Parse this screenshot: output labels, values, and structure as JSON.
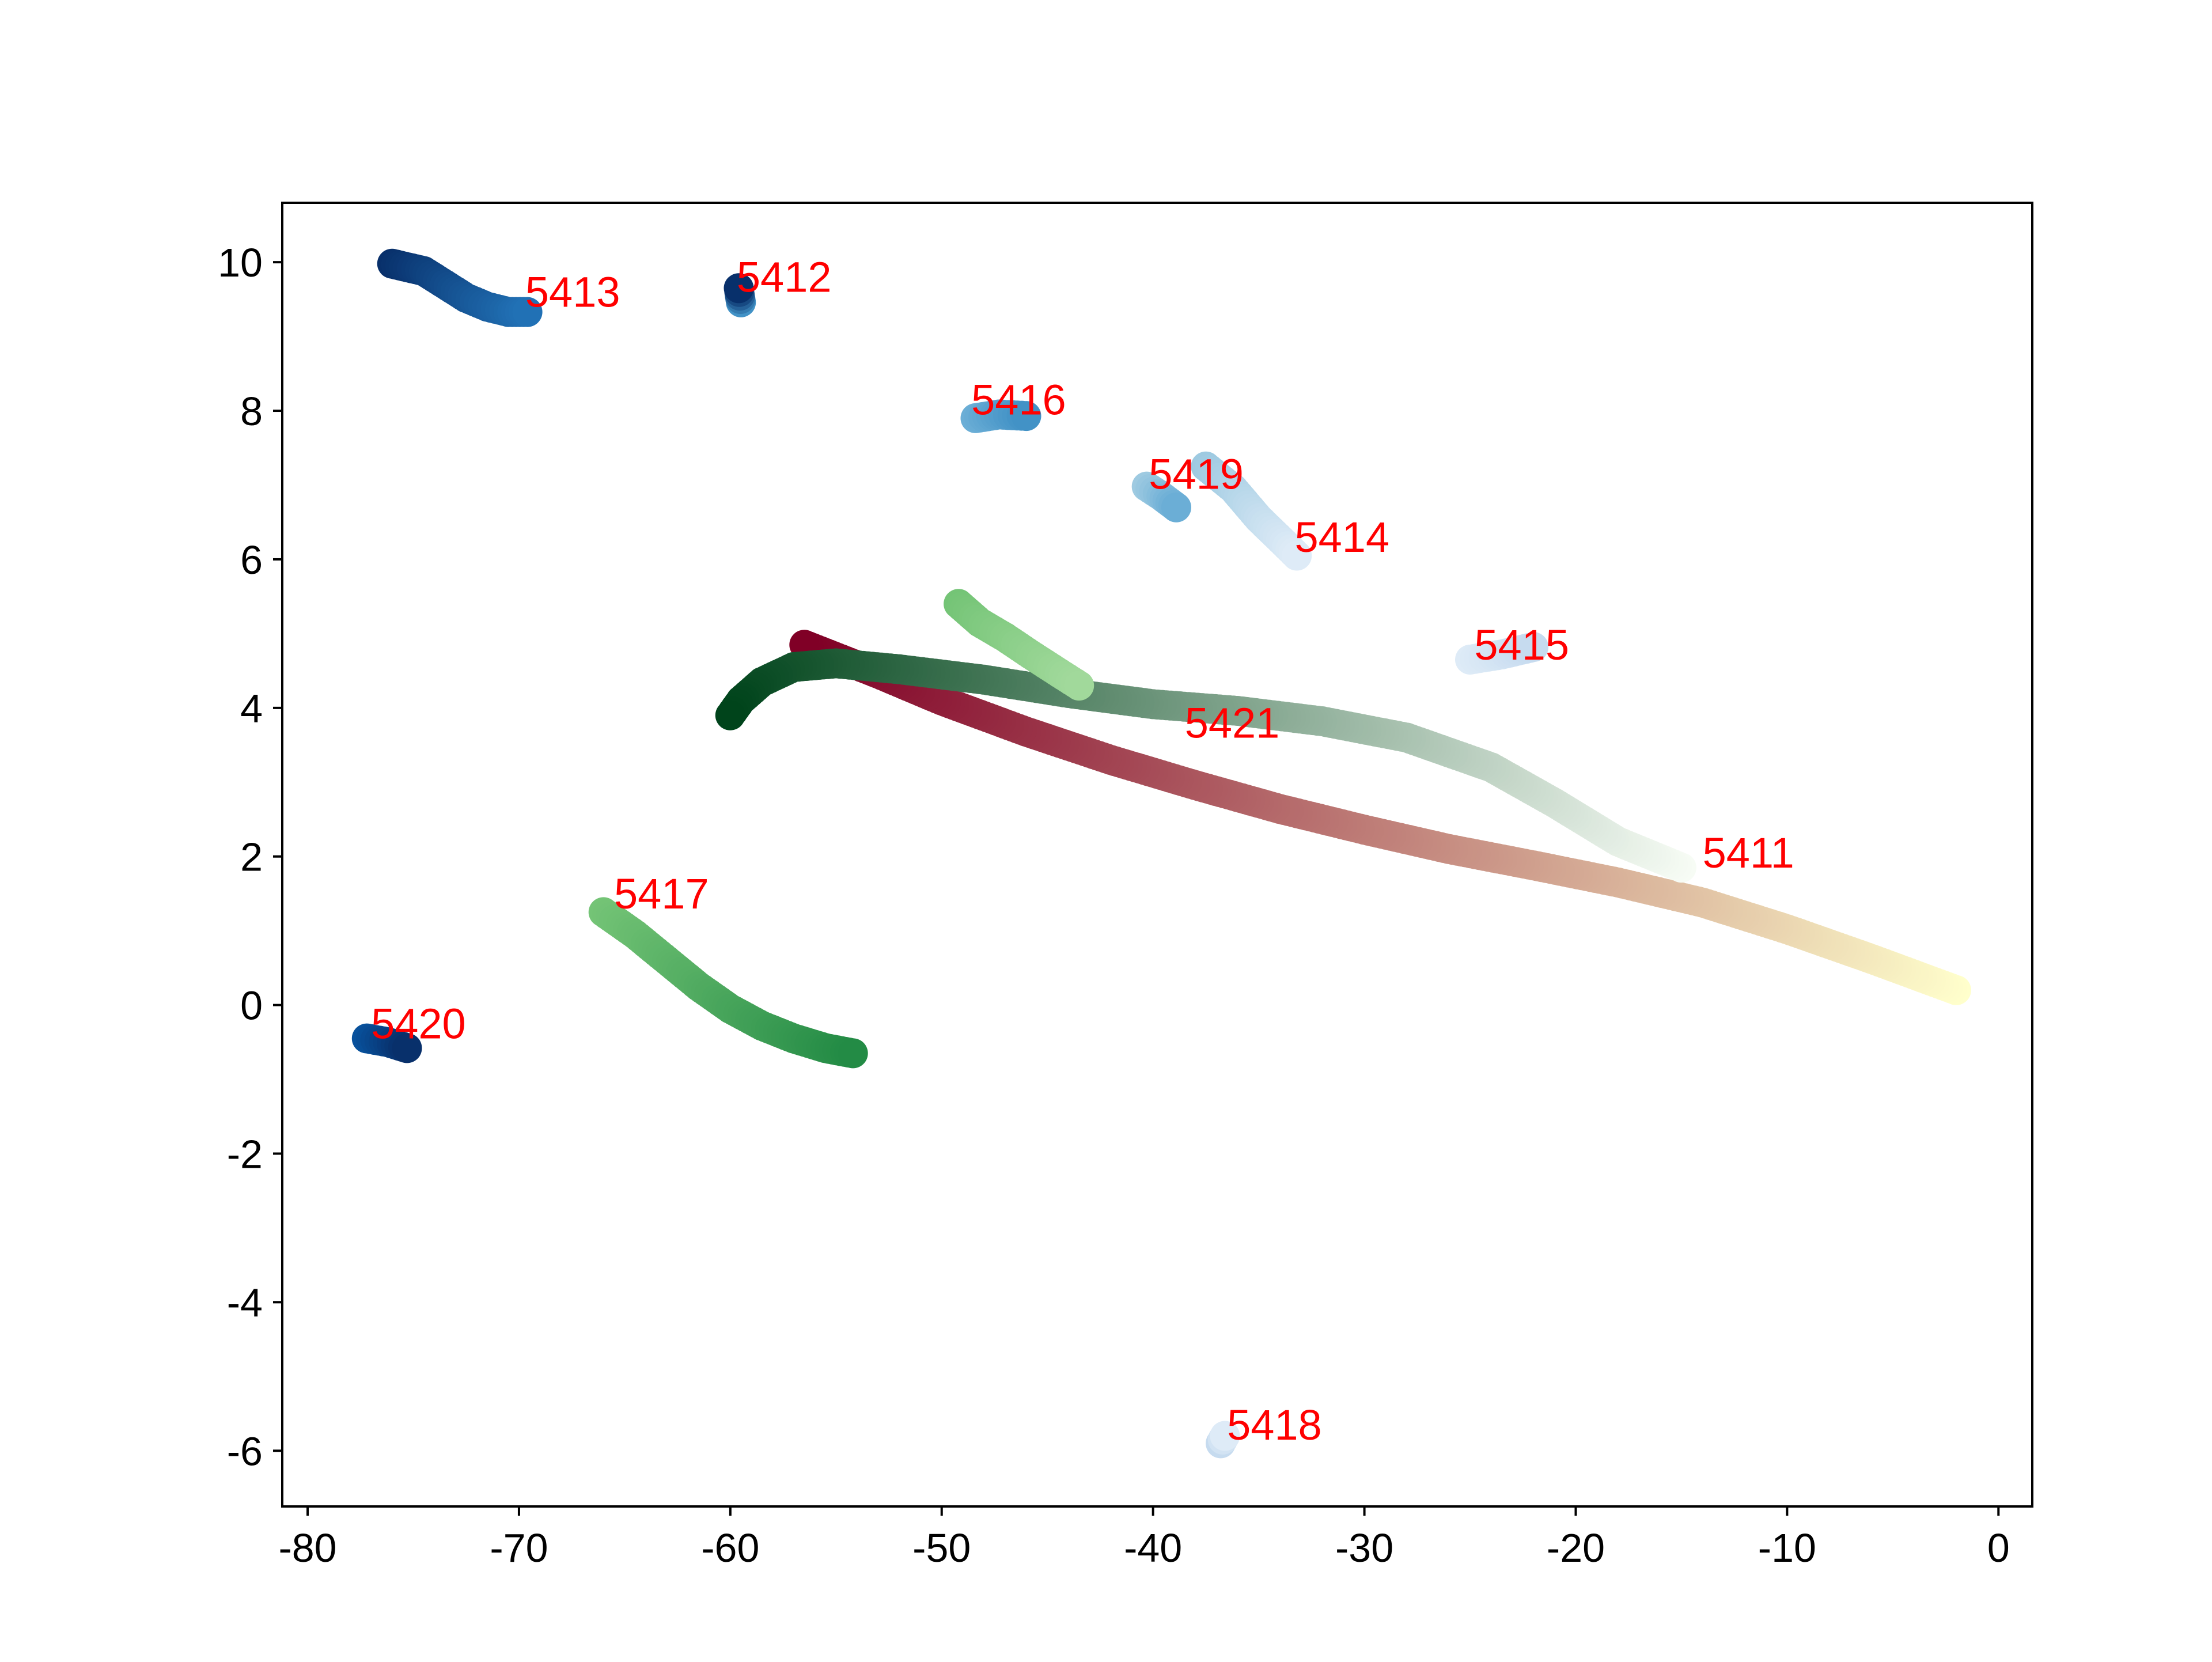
{
  "chart_data": {
    "type": "scatter",
    "title": "",
    "xlabel": "",
    "ylabel": "",
    "xlim": [
      -81.2,
      1.6
    ],
    "ylim": [
      -6.75,
      10.8
    ],
    "xticks": [
      -80,
      -70,
      -60,
      -50,
      -40,
      -30,
      -20,
      -10,
      0
    ],
    "yticks": [
      -6,
      -4,
      -2,
      0,
      2,
      4,
      6,
      8,
      10
    ],
    "grid": false,
    "legend": "none",
    "label_color": "#ff0000",
    "series": [
      {
        "name": "5411",
        "cmap": "YlOrRd",
        "color_start": "#ffffcc",
        "color_end": "#800026",
        "label_at": [
          -14.0,
          1.85
        ],
        "points": [
          [
            -2.0,
            0.2
          ],
          [
            -6.0,
            0.62
          ],
          [
            -10.0,
            1.02
          ],
          [
            -14.0,
            1.38
          ],
          [
            -18.0,
            1.65
          ],
          [
            -22.0,
            1.88
          ],
          [
            -26.0,
            2.1
          ],
          [
            -30.0,
            2.36
          ],
          [
            -34.0,
            2.64
          ],
          [
            -38.0,
            2.96
          ],
          [
            -42.0,
            3.3
          ],
          [
            -46.0,
            3.68
          ],
          [
            -50.0,
            4.1
          ],
          [
            -53.0,
            4.46
          ],
          [
            -56.5,
            4.85
          ]
        ]
      },
      {
        "name": "5421",
        "cmap": "Greens",
        "color_start": "#f7fcf5",
        "color_end": "#00441b",
        "label_at": [
          -38.5,
          3.6
        ],
        "points": [
          [
            -15.0,
            1.85
          ],
          [
            -18.0,
            2.2
          ],
          [
            -21.0,
            2.72
          ],
          [
            -24.0,
            3.2
          ],
          [
            -28.0,
            3.6
          ],
          [
            -32.0,
            3.82
          ],
          [
            -36.0,
            3.96
          ],
          [
            -40.0,
            4.05
          ],
          [
            -44.0,
            4.2
          ],
          [
            -48.0,
            4.38
          ],
          [
            -52.0,
            4.52
          ],
          [
            -55.0,
            4.6
          ],
          [
            -57.0,
            4.55
          ],
          [
            -58.5,
            4.35
          ],
          [
            -59.5,
            4.1
          ],
          [
            -60.0,
            3.9
          ]
        ]
      },
      {
        "name": "5417",
        "cmap": "Greens",
        "color_start": "#74c476",
        "color_end": "#238b45",
        "label_at": [
          -65.5,
          1.3
        ],
        "points": [
          [
            -66.0,
            1.25
          ],
          [
            -64.5,
            0.95
          ],
          [
            -63.0,
            0.6
          ],
          [
            -61.5,
            0.25
          ],
          [
            -60.0,
            -0.05
          ],
          [
            -58.5,
            -0.28
          ],
          [
            -57.0,
            -0.45
          ],
          [
            -55.5,
            -0.58
          ],
          [
            -54.2,
            -0.65
          ]
        ]
      },
      {
        "name": "5413",
        "cmap": "Blues",
        "color_start": "#08306b",
        "color_end": "#2171b5",
        "label_at": [
          -69.7,
          9.4
        ],
        "points": [
          [
            -76.0,
            9.98
          ],
          [
            -74.5,
            9.88
          ],
          [
            -73.5,
            9.7
          ],
          [
            -72.5,
            9.52
          ],
          [
            -71.5,
            9.4
          ],
          [
            -70.5,
            9.33
          ],
          [
            -69.6,
            9.33
          ]
        ]
      },
      {
        "name": "5412",
        "cmap": "Blues",
        "color_start": "#4292c6",
        "color_end": "#08306b",
        "label_at": [
          -59.7,
          9.6
        ],
        "points": [
          [
            -59.5,
            9.46
          ],
          [
            -59.55,
            9.55
          ],
          [
            -59.6,
            9.65
          ]
        ]
      },
      {
        "name": "5416",
        "cmap": "Blues",
        "color_start": "#6baed6",
        "color_end": "#4292c6",
        "label_at": [
          -48.6,
          7.95
        ],
        "points": [
          [
            -48.4,
            7.9
          ],
          [
            -47.3,
            7.95
          ],
          [
            -46.0,
            7.93
          ]
        ]
      },
      {
        "name": "5419",
        "cmap": "Blues",
        "color_start": "#9ecae1",
        "color_end": "#6baed6",
        "label_at": [
          -40.2,
          6.95
        ],
        "points": [
          [
            -40.3,
            6.98
          ],
          [
            -39.6,
            6.85
          ],
          [
            -38.9,
            6.7
          ]
        ]
      },
      {
        "name": "5414",
        "cmap": "Blues",
        "color_start": "#9ecae1",
        "color_end": "#deebf7",
        "label_at": [
          -33.3,
          6.1
        ],
        "points": [
          [
            -37.5,
            7.25
          ],
          [
            -36.2,
            6.95
          ],
          [
            -35.0,
            6.55
          ],
          [
            -33.8,
            6.22
          ],
          [
            -33.2,
            6.05
          ]
        ]
      },
      {
        "name": "5415",
        "cmap": "Blues",
        "color_start": "#deebf7",
        "color_end": "#c6dbef",
        "label_at": [
          -24.8,
          4.65
        ],
        "points": [
          [
            -25.0,
            4.65
          ],
          [
            -23.5,
            4.72
          ],
          [
            -22.0,
            4.82
          ]
        ]
      },
      {
        "name": "5420",
        "cmap": "Blues",
        "color_start": "#08519c",
        "color_end": "#08306b",
        "label_at": [
          -77.0,
          -0.45
        ],
        "points": [
          [
            -77.2,
            -0.45
          ],
          [
            -76.2,
            -0.5
          ],
          [
            -75.3,
            -0.58
          ]
        ]
      },
      {
        "name": "5418",
        "cmap": "Blues",
        "color_start": "#c6dbef",
        "color_end": "#deebf7",
        "label_at": [
          -36.5,
          -5.85
        ],
        "points": [
          [
            -36.8,
            -5.9
          ],
          [
            -36.6,
            -5.8
          ]
        ]
      },
      {
        "name": "",
        "cmap": "Greens",
        "color_start": "#74c476",
        "color_end": "#a1d99b",
        "label_at": null,
        "points": [
          [
            -49.2,
            5.4
          ],
          [
            -48.2,
            5.15
          ],
          [
            -47.0,
            4.95
          ],
          [
            -45.8,
            4.72
          ],
          [
            -44.6,
            4.5
          ],
          [
            -43.5,
            4.3
          ]
        ]
      }
    ]
  }
}
